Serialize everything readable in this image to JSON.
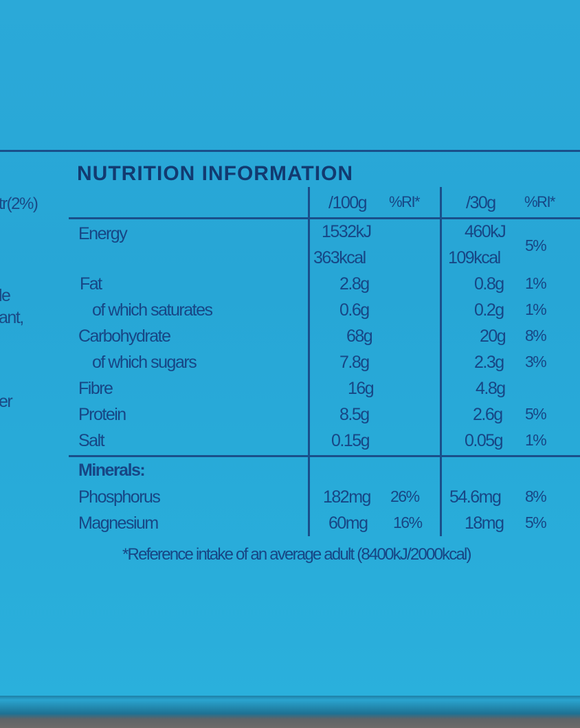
{
  "panel": {
    "title": "NUTRITION INFORMATION",
    "left_fragments": [
      "tr(2%)",
      "le",
      "ant,",
      "er"
    ]
  },
  "header": {
    "per100": "/100g",
    "ri1": "%RI*",
    "per30": "/30g",
    "ri2": "%RI*"
  },
  "rows": [
    {
      "label": "Energy",
      "v100": "1532kJ",
      "v100b": "363kcal",
      "v30": "460kJ",
      "v30b": "109kcal",
      "ri30": "5%"
    },
    {
      "label": "Fat",
      "v100": "2.8g",
      "v30": "0.8g",
      "ri30": "1%"
    },
    {
      "label": "of which saturates",
      "v100": "0.6g",
      "v30": "0.2g",
      "ri30": "1%"
    },
    {
      "label": "Carbohydrate",
      "v100": "68g",
      "v30": "20g",
      "ri30": "8%"
    },
    {
      "label": "of which sugars",
      "v100": "7.8g",
      "v30": "2.3g",
      "ri30": "3%"
    },
    {
      "label": "Fibre",
      "v100": "16g",
      "v30": "4.8g",
      "ri30": ""
    },
    {
      "label": "Protein",
      "v100": "8.5g",
      "v30": "2.6g",
      "ri30": "5%"
    },
    {
      "label": "Salt",
      "v100": "0.15g",
      "v30": "0.05g",
      "ri30": "1%"
    }
  ],
  "minerals": {
    "heading": "Minerals:",
    "items": [
      {
        "label": "Phosphorus",
        "v100": "182mg",
        "ri100": "26%",
        "v30": "54.6mg",
        "ri30": "8%"
      },
      {
        "label": "Magnesium",
        "v100": "60mg",
        "ri100": "16%",
        "v30": "18mg",
        "ri30": "5%"
      }
    ]
  },
  "footnote": "*Reference intake of an average adult (8400kJ/2000kcal)"
}
